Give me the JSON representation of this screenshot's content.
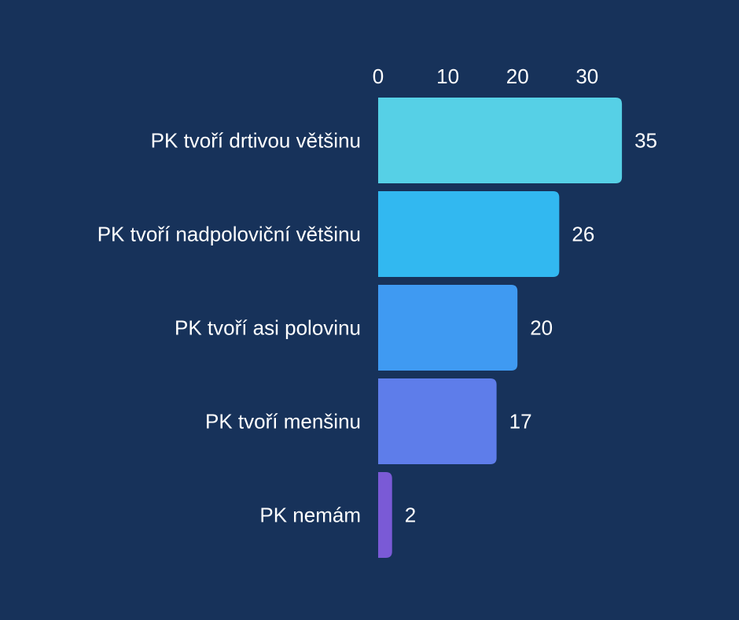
{
  "chart_data": {
    "type": "bar",
    "orientation": "horizontal",
    "categories": [
      "PK tvoří drtivou většinu",
      "PK tvoří nadpoloviční většinu",
      "PK tvoří asi polovinu",
      "PK tvoří menšinu",
      "PK nemám"
    ],
    "values": [
      35,
      26,
      20,
      17,
      2
    ],
    "bar_colors": [
      "#56d0e6",
      "#32b8f0",
      "#3f9af2",
      "#5e7dea",
      "#7a5ad6"
    ],
    "x_ticks": [
      0,
      10,
      20,
      30
    ],
    "xlim": [
      0,
      35
    ],
    "axis_position": "top",
    "grid": false,
    "legend": "none",
    "background": "#17325a",
    "text_color": "#ffffff"
  }
}
